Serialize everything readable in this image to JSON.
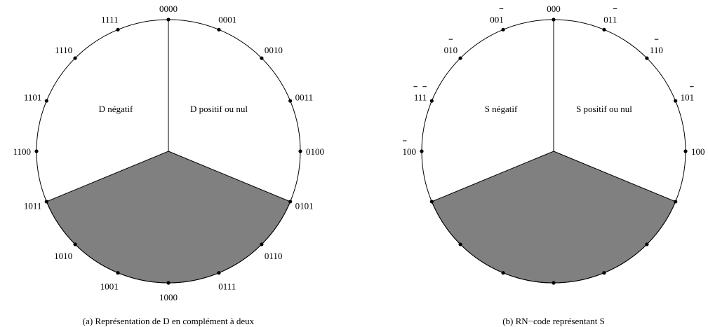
{
  "panels": [
    {
      "id": "a",
      "caption": "(a) Représentation de D en complément à deux",
      "left_label": "D négatif",
      "right_label": "D positif ou nul",
      "ticks": [
        {
          "label": "0000",
          "bar": ""
        },
        {
          "label": "0001",
          "bar": ""
        },
        {
          "label": "0010",
          "bar": ""
        },
        {
          "label": "0011",
          "bar": ""
        },
        {
          "label": "0100",
          "bar": ""
        },
        {
          "label": "0101",
          "bar": ""
        },
        {
          "label": "0110",
          "bar": ""
        },
        {
          "label": "0111",
          "bar": ""
        },
        {
          "label": "1000",
          "bar": ""
        },
        {
          "label": "1001",
          "bar": ""
        },
        {
          "label": "1010",
          "bar": ""
        },
        {
          "label": "1011",
          "bar": ""
        },
        {
          "label": "1100",
          "bar": ""
        },
        {
          "label": "1101",
          "bar": ""
        },
        {
          "label": "1110",
          "bar": ""
        },
        {
          "label": "1111",
          "bar": ""
        }
      ]
    },
    {
      "id": "b",
      "caption": "(b) RN−code représentant S",
      "left_label": "S négatif",
      "right_label": "S positif ou nul",
      "ticks": [
        {
          "label": "000",
          "bar": ""
        },
        {
          "label": "011",
          "bar": "001"
        },
        {
          "label": "110",
          "bar": "010"
        },
        {
          "label": "101",
          "bar": "001"
        },
        {
          "label": "100",
          "bar": ""
        },
        {
          "label": "",
          "bar": ""
        },
        {
          "label": "",
          "bar": ""
        },
        {
          "label": "",
          "bar": ""
        },
        {
          "label": "",
          "bar": ""
        },
        {
          "label": "",
          "bar": ""
        },
        {
          "label": "",
          "bar": ""
        },
        {
          "label": "",
          "bar": ""
        },
        {
          "label": "100",
          "bar": "100"
        },
        {
          "label": "111",
          "bar": "101"
        },
        {
          "label": "010",
          "bar": "010"
        },
        {
          "label": "001",
          "bar": "001"
        }
      ]
    }
  ],
  "colors": {
    "shade": "#808080",
    "stroke": "#000000"
  }
}
